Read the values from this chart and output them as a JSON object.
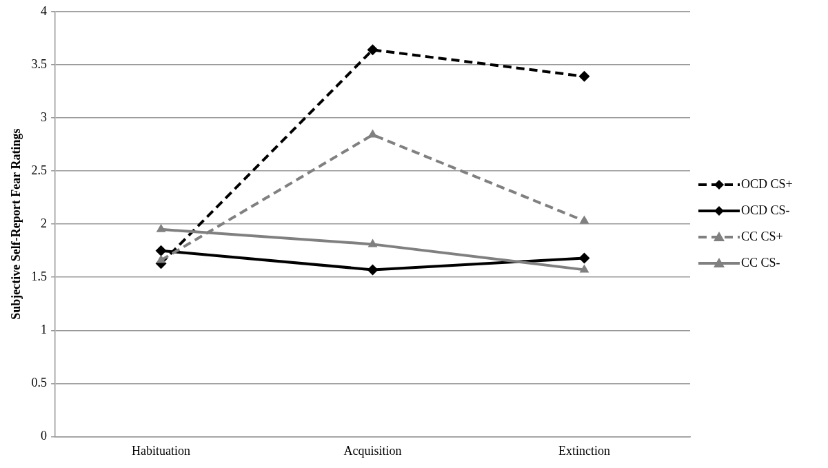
{
  "chart_data": {
    "type": "line",
    "ylabel": "Subjective Self-Report Fear Ratings",
    "categories": [
      "Habituation",
      "Acquisition",
      "Extinction"
    ],
    "ylim": [
      0,
      4
    ],
    "yticks": [
      0,
      0.5,
      1,
      1.5,
      2,
      2.5,
      3,
      3.5,
      4
    ],
    "grid": "y",
    "legend": "right",
    "series": [
      {
        "name": "OCD CS+",
        "color": "#000000",
        "marker": "diamond",
        "line_style": "dashed",
        "values": [
          1.63,
          3.64,
          3.39
        ]
      },
      {
        "name": "OCD CS-",
        "color": "#000000",
        "marker": "diamond",
        "line_style": "solid",
        "values": [
          1.75,
          1.57,
          1.68
        ]
      },
      {
        "name": "CC CS+",
        "color": "#808080",
        "marker": "triangle",
        "line_style": "dashed",
        "values": [
          1.66,
          2.84,
          2.03
        ]
      },
      {
        "name": "CC CS-",
        "color": "#808080",
        "marker": "triangle",
        "line_style": "solid",
        "values": [
          1.95,
          1.81,
          1.57
        ]
      }
    ]
  }
}
